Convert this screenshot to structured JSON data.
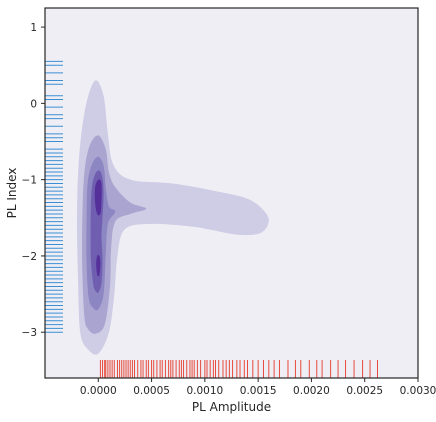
{
  "chart_data": {
    "type": "kde-contour-with-rug",
    "title": "",
    "xlabel": "PL Amplitude",
    "ylabel": "PL Index",
    "xlim": [
      -0.0005,
      0.003
    ],
    "ylim": [
      -3.6,
      1.25
    ],
    "xticks": [
      {
        "value": 0.0,
        "label": "0.0000"
      },
      {
        "value": 0.0005,
        "label": "0.0005"
      },
      {
        "value": 0.001,
        "label": "0.0010"
      },
      {
        "value": 0.0015,
        "label": "0.0015"
      },
      {
        "value": 0.002,
        "label": "0.0020"
      },
      {
        "value": 0.0025,
        "label": "0.0025"
      },
      {
        "value": 0.003,
        "label": "0.0030"
      }
    ],
    "yticks": [
      {
        "value": 1,
        "label": "1"
      },
      {
        "value": 0,
        "label": "0"
      },
      {
        "value": -1,
        "label": "−1"
      },
      {
        "value": -2,
        "label": "−2"
      },
      {
        "value": -3,
        "label": "−3"
      }
    ],
    "grid": false,
    "background_color": "#efeef5",
    "contour_levels": [
      {
        "level": 1,
        "color": "#cfcde5",
        "points": [
          [
            -0.00017,
            -3.0
          ],
          [
            -0.00019,
            -2.3
          ],
          [
            -0.0002,
            -1.5
          ],
          [
            -0.00018,
            -0.7
          ],
          [
            -0.00012,
            -0.05
          ],
          [
            -3e-05,
            0.3
          ],
          [
            5e-05,
            0.1
          ],
          [
            9e-05,
            -0.4
          ],
          [
            0.00014,
            -0.8
          ],
          [
            0.0003,
            -1.0
          ],
          [
            0.0007,
            -1.05
          ],
          [
            0.0011,
            -1.15
          ],
          [
            0.0014,
            -1.25
          ],
          [
            0.00155,
            -1.4
          ],
          [
            0.0016,
            -1.55
          ],
          [
            0.00152,
            -1.7
          ],
          [
            0.0013,
            -1.72
          ],
          [
            0.0009,
            -1.62
          ],
          [
            0.0005,
            -1.58
          ],
          [
            0.00025,
            -1.65
          ],
          [
            0.00018,
            -2.0
          ],
          [
            0.00015,
            -2.5
          ],
          [
            0.0001,
            -3.0
          ],
          [
            0.0,
            -3.28
          ],
          [
            -0.0001,
            -3.22
          ]
        ]
      },
      {
        "level": 2,
        "color": "#a9a5d0",
        "points": [
          [
            -0.00013,
            -2.8
          ],
          [
            -0.00015,
            -2.2
          ],
          [
            -0.00015,
            -1.5
          ],
          [
            -0.00013,
            -0.9
          ],
          [
            -8e-05,
            -0.55
          ],
          [
            0.0,
            -0.42
          ],
          [
            7e-05,
            -0.6
          ],
          [
            0.0001,
            -0.9
          ],
          [
            0.00016,
            -1.1
          ],
          [
            0.0003,
            -1.3
          ],
          [
            0.00045,
            -1.38
          ],
          [
            0.0003,
            -1.45
          ],
          [
            0.00016,
            -1.55
          ],
          [
            0.00012,
            -1.9
          ],
          [
            0.00011,
            -2.4
          ],
          [
            6e-05,
            -2.9
          ],
          [
            -3e-05,
            -3.02
          ],
          [
            -0.0001,
            -2.95
          ]
        ]
      },
      {
        "level": 3,
        "color": "#8c86c2",
        "points": [
          [
            -9e-05,
            -2.55
          ],
          [
            -0.00011,
            -2.1
          ],
          [
            -0.00011,
            -1.5
          ],
          [
            -0.0001,
            -1.05
          ],
          [
            -6e-05,
            -0.8
          ],
          [
            0.0,
            -0.7
          ],
          [
            5e-05,
            -0.82
          ],
          [
            7e-05,
            -1.1
          ],
          [
            0.0001,
            -1.35
          ],
          [
            0.00016,
            -1.42
          ],
          [
            9e-05,
            -1.58
          ],
          [
            7e-05,
            -2.0
          ],
          [
            5e-05,
            -2.5
          ],
          [
            0.0,
            -2.7
          ],
          [
            -5e-05,
            -2.68
          ]
        ]
      },
      {
        "level": 4,
        "color": "#705fb0",
        "points": [
          [
            -5e-05,
            -2.35
          ],
          [
            -7e-05,
            -2.0
          ],
          [
            -7e-05,
            -1.4
          ],
          [
            -6e-05,
            -1.1
          ],
          [
            -3e-05,
            -0.93
          ],
          [
            1e-05,
            -0.88
          ],
          [
            4e-05,
            -0.98
          ],
          [
            5e-05,
            -1.2
          ],
          [
            4e-05,
            -1.5
          ],
          [
            3e-05,
            -1.75
          ],
          [
            4e-05,
            -2.05
          ],
          [
            3e-05,
            -2.35
          ],
          [
            0.0,
            -2.48
          ],
          [
            -3e-05,
            -2.45
          ]
        ]
      },
      {
        "level": 5,
        "color": "#55309b",
        "points": [
          [
            -3e-05,
            -1.3
          ],
          [
            -3e-05,
            -1.1
          ],
          [
            0.0,
            -1.0
          ],
          [
            3e-05,
            -1.05
          ],
          [
            3e-05,
            -1.3
          ],
          [
            2e-05,
            -1.45
          ],
          [
            -1e-05,
            -1.45
          ]
        ]
      },
      {
        "level": 5,
        "color": "#55309b",
        "points": [
          [
            -2e-05,
            -2.1
          ],
          [
            -1e-05,
            -2.0
          ],
          [
            1e-05,
            -2.0
          ],
          [
            2e-05,
            -2.1
          ],
          [
            1e-05,
            -2.25
          ],
          [
            -1e-05,
            -2.25
          ]
        ]
      }
    ],
    "x_rug": {
      "color": "#e84a3c",
      "values": [
        2e-05,
        4e-05,
        6e-05,
        7e-05,
        9e-05,
        0.00011,
        0.00013,
        0.00015,
        0.00018,
        0.0002,
        0.00022,
        0.00024,
        0.00026,
        0.00028,
        0.0003,
        0.00032,
        0.00034,
        0.00037,
        0.0004,
        0.00042,
        0.00045,
        0.00047,
        0.0005,
        0.00052,
        0.00055,
        0.00058,
        0.0006,
        0.00063,
        0.00066,
        0.00068,
        0.0007,
        0.00073,
        0.00076,
        0.00078,
        0.0008,
        0.00083,
        0.00086,
        0.00088,
        0.0009,
        0.00093,
        0.00096,
        0.001,
        0.00102,
        0.00105,
        0.00108,
        0.0011,
        0.00113,
        0.00117,
        0.0012,
        0.00123,
        0.00126,
        0.0013,
        0.00133,
        0.00137,
        0.0014,
        0.00145,
        0.0015,
        0.00155,
        0.0016,
        0.00165,
        0.0017,
        0.00178,
        0.00185,
        0.0019,
        0.00198,
        0.00205,
        0.0021,
        0.00218,
        0.00225,
        0.00232,
        0.0024,
        0.00248,
        0.00255,
        0.00262
      ]
    },
    "y_rug": {
      "color": "#3a8fd4",
      "values": [
        0.55,
        0.5,
        0.4,
        0.3,
        0.25,
        0.1,
        0.05,
        -0.05,
        -0.15,
        -0.2,
        -0.3,
        -0.4,
        -0.45,
        -0.5,
        -0.6,
        -0.65,
        -0.7,
        -0.75,
        -0.8,
        -0.85,
        -0.9,
        -0.95,
        -1.0,
        -1.05,
        -1.1,
        -1.15,
        -1.2,
        -1.25,
        -1.3,
        -1.35,
        -1.4,
        -1.45,
        -1.5,
        -1.55,
        -1.6,
        -1.65,
        -1.7,
        -1.75,
        -1.8,
        -1.85,
        -1.9,
        -1.95,
        -2.0,
        -2.05,
        -2.1,
        -2.15,
        -2.2,
        -2.25,
        -2.3,
        -2.35,
        -2.4,
        -2.45,
        -2.5,
        -2.55,
        -2.6,
        -2.65,
        -2.7,
        -2.75,
        -2.8,
        -2.85,
        -2.9,
        -2.95,
        -3.0
      ]
    }
  }
}
